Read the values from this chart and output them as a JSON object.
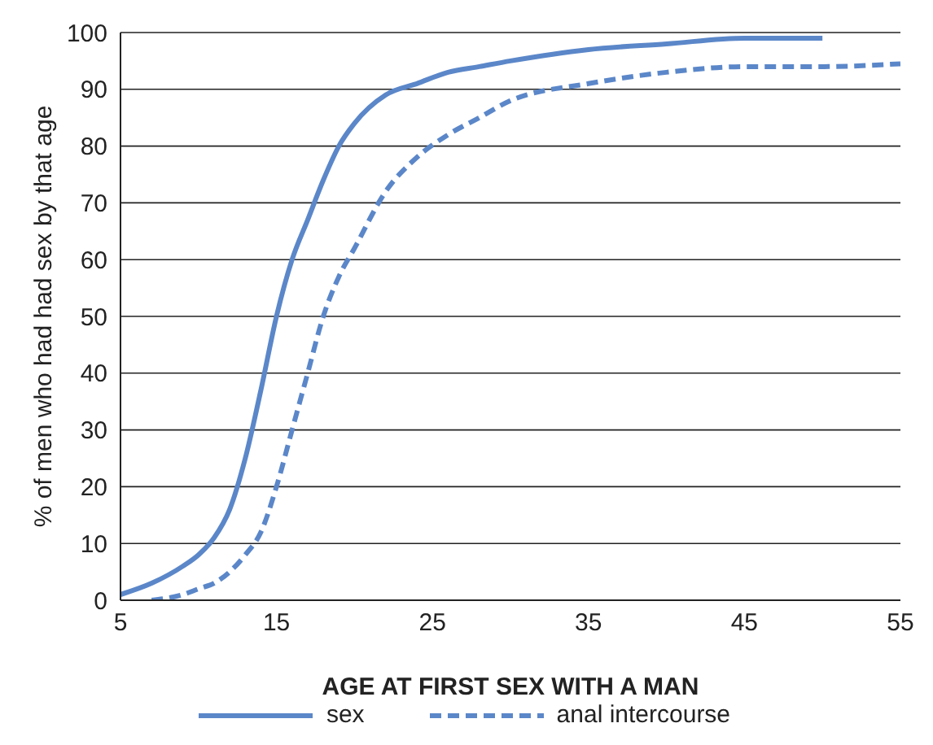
{
  "chart_data": {
    "type": "line",
    "xlabel": "AGE AT FIRST SEX WITH A MAN",
    "ylabel": "% of men who had had sex by that age",
    "xlim": [
      5,
      55
    ],
    "xticks": [
      5,
      15,
      25,
      35,
      45,
      55
    ],
    "ylim": [
      0,
      100
    ],
    "yticks": [
      0,
      10,
      20,
      30,
      40,
      50,
      60,
      70,
      80,
      90,
      100
    ],
    "grid": "y",
    "legend": "bottom",
    "marker": "none",
    "series": [
      {
        "name": "sex",
        "color": "#5b87c9",
        "line_style": "solid",
        "x": [
          5,
          7,
          9,
          10,
          11,
          12,
          13,
          14,
          15,
          16,
          17,
          18,
          19,
          20,
          22,
          24,
          26,
          28,
          30,
          35,
          40,
          45,
          50
        ],
        "values": [
          1,
          3,
          6,
          8,
          11,
          16,
          25,
          37,
          50,
          60,
          67,
          74,
          80,
          84,
          89,
          91,
          93,
          94,
          95,
          97,
          98,
          99,
          99
        ]
      },
      {
        "name": "anal intercourse",
        "color": "#5b87c9",
        "line_style": "dashed",
        "x": [
          7,
          9,
          10,
          11,
          12,
          13,
          14,
          15,
          16,
          17,
          18,
          19,
          20,
          22,
          24,
          26,
          28,
          30,
          35,
          40,
          45,
          50,
          55
        ],
        "values": [
          0,
          1,
          2,
          3,
          5,
          8,
          12,
          20,
          30,
          40,
          50,
          57,
          62,
          72,
          78,
          82,
          85,
          88,
          91,
          93,
          94,
          94,
          94.5
        ]
      }
    ]
  }
}
